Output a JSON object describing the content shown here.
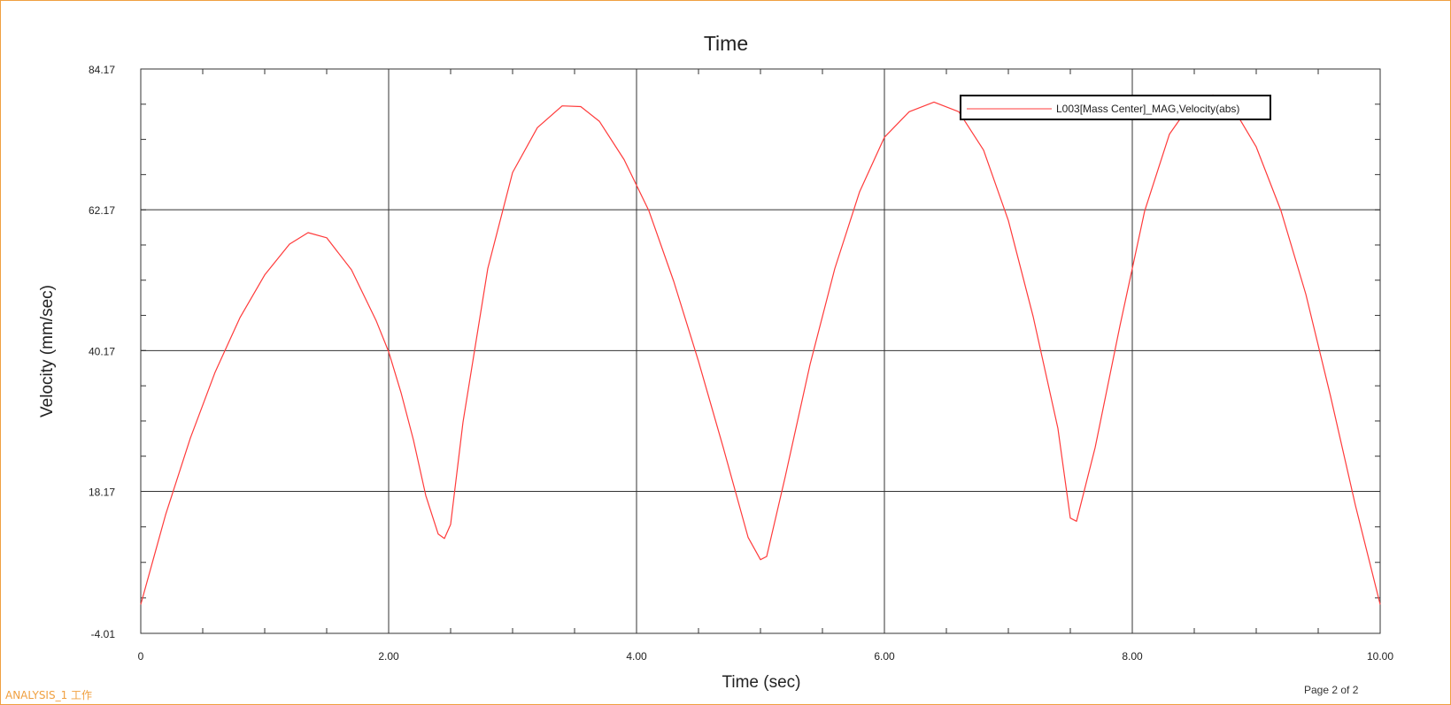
{
  "colors": {
    "border": "#f0a040",
    "series": "#ff3b3b",
    "grid": "#333333",
    "text": "#222222",
    "footer_left": "#f0a040"
  },
  "footer": {
    "left": "ANALYSIS_1 工作",
    "right": "Page 2 of 2"
  },
  "chart_data": {
    "type": "line",
    "title": "Time",
    "xlabel": "Time (sec)",
    "ylabel": "Velocity (mm/sec)",
    "xlim": [
      0,
      10
    ],
    "ylim": [
      -4.01,
      84.17
    ],
    "x_ticks": [
      0,
      2,
      4,
      6,
      8,
      10
    ],
    "x_tick_labels": [
      "0",
      "2.00",
      "4.00",
      "6.00",
      "8.00",
      "10.00"
    ],
    "y_ticks": [
      -4.01,
      18.17,
      40.17,
      62.17,
      84.17
    ],
    "y_tick_labels": [
      "-4.01",
      "18.17",
      "40.17",
      "62.17",
      "84.17"
    ],
    "grid": true,
    "legend_position": "top-right",
    "series": [
      {
        "name": "L003[Mass Center]_MAG,Velocity(abs)",
        "x": [
          0,
          0.1,
          0.2,
          0.4,
          0.6,
          0.8,
          1.0,
          1.2,
          1.35,
          1.5,
          1.7,
          1.9,
          2.0,
          2.1,
          2.2,
          2.3,
          2.4,
          2.45,
          2.5,
          2.6,
          2.8,
          3.0,
          3.2,
          3.4,
          3.55,
          3.7,
          3.9,
          4.1,
          4.3,
          4.5,
          4.7,
          4.9,
          5.0,
          5.05,
          5.2,
          5.4,
          5.6,
          5.8,
          6.0,
          6.2,
          6.4,
          6.6,
          6.8,
          7.0,
          7.2,
          7.4,
          7.5,
          7.55,
          7.7,
          7.9,
          8.1,
          8.3,
          8.5,
          8.65,
          8.8,
          9.0,
          9.2,
          9.4,
          9.6,
          9.8,
          10.0
        ],
        "y": [
          0.5,
          7.5,
          14.5,
          26.5,
          36.8,
          45.3,
          52.0,
          56.8,
          58.6,
          57.8,
          52.8,
          44.8,
          40.0,
          33.6,
          26.2,
          17.5,
          11.5,
          10.8,
          13.0,
          29.0,
          53.0,
          68.0,
          75.0,
          78.4,
          78.3,
          76.0,
          70.0,
          62.0,
          51.0,
          38.5,
          25.0,
          11.0,
          7.5,
          8.0,
          20.5,
          38.0,
          53.0,
          65.0,
          73.5,
          77.5,
          79.0,
          77.5,
          71.5,
          60.5,
          45.5,
          28.0,
          14.0,
          13.5,
          25.0,
          44.0,
          62.0,
          74.0,
          79.5,
          80.1,
          78.5,
          72.0,
          62.0,
          49.0,
          33.0,
          16.0,
          0.5
        ]
      }
    ]
  }
}
